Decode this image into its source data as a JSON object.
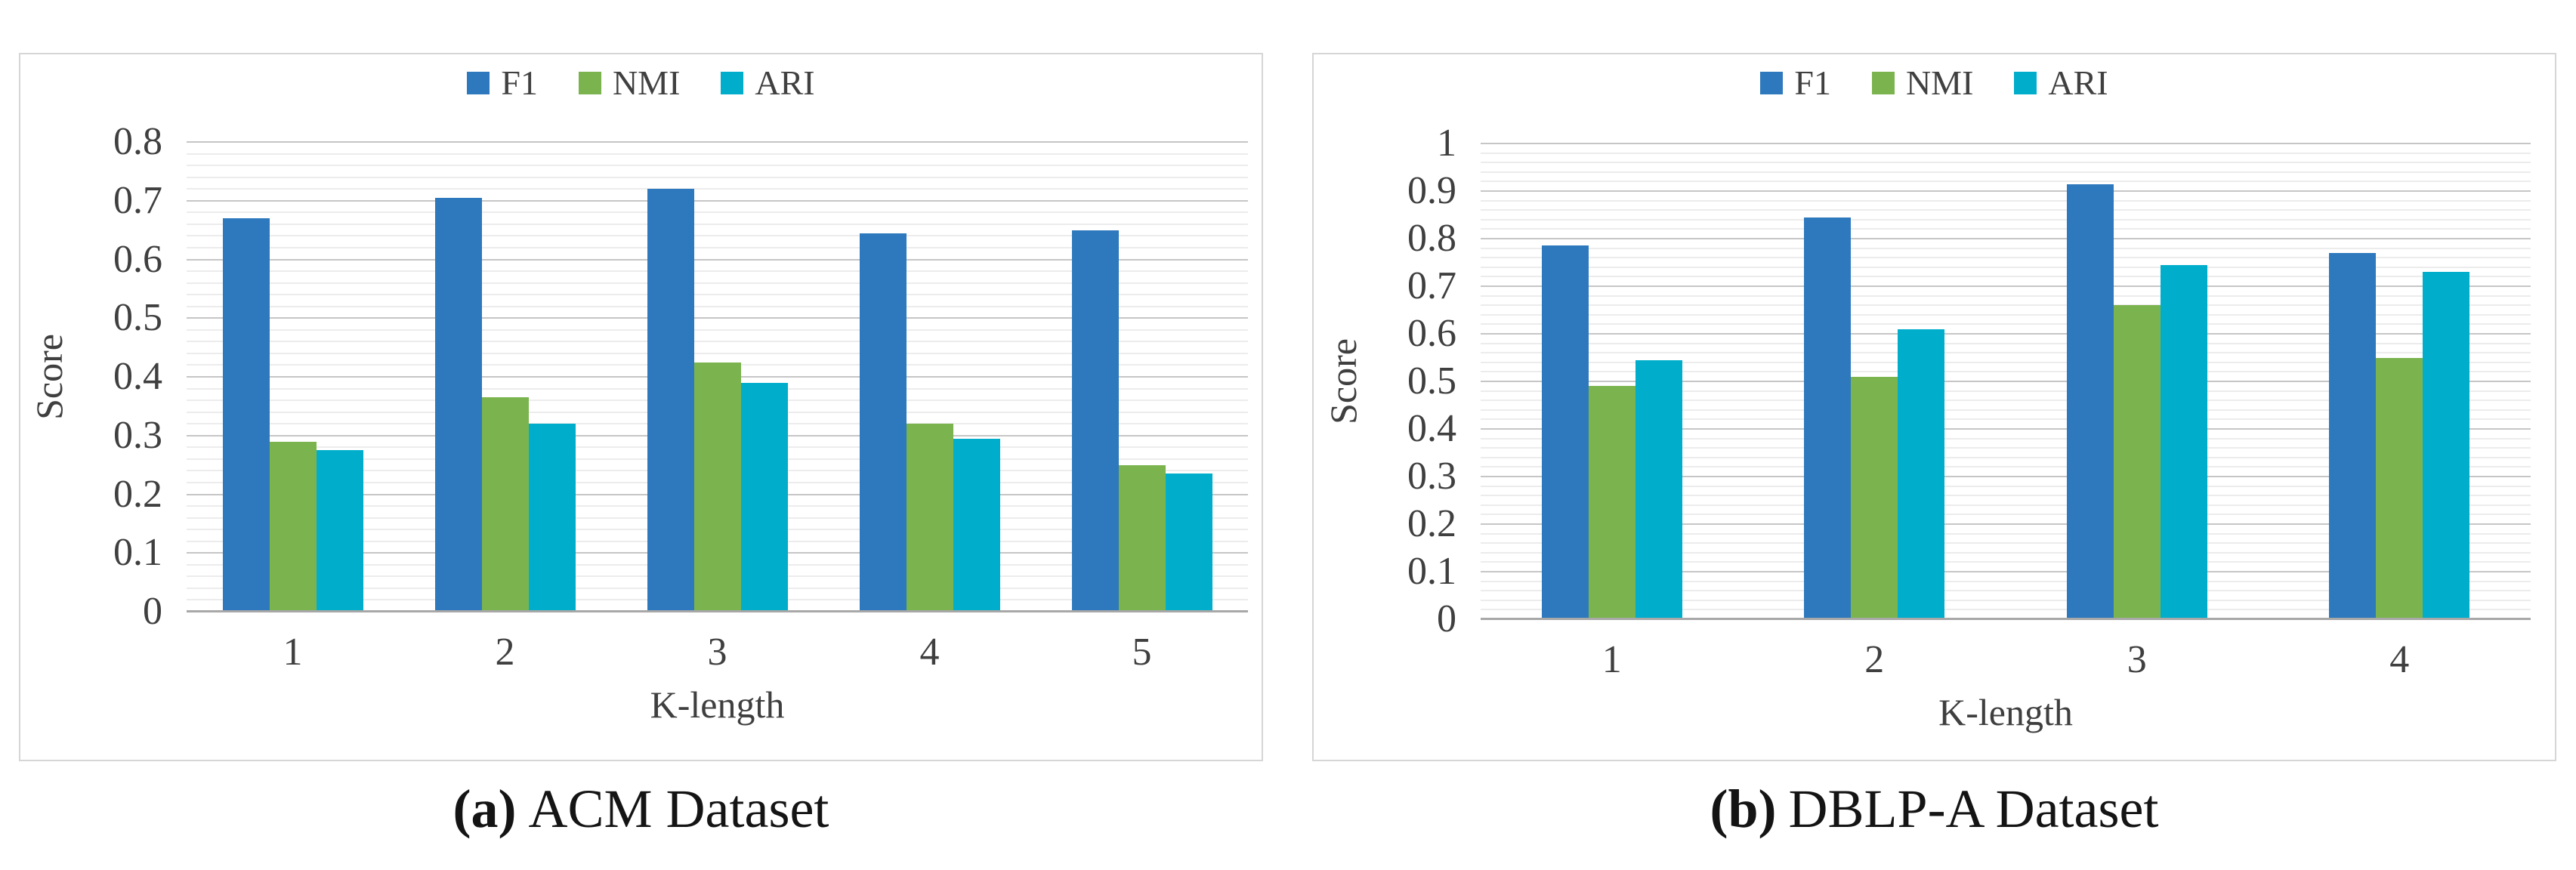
{
  "figure": {
    "ylabel": "Score",
    "xlabel": "K-length",
    "legend_labels": [
      "F1",
      "NMI",
      "ARI"
    ],
    "colors": {
      "f1_blue": "#2E79BD",
      "nmi_green": "#7BB44E",
      "ari_cyan": "#00AECB",
      "grid_minor": "#ECECEC",
      "grid_major": "#C6C6C6",
      "axis_text": "#3F3F3F"
    }
  },
  "chart_data": [
    {
      "type": "bar",
      "title": "(a) ACM Dataset",
      "caption_marker": "(a)",
      "caption": "ACM Dataset",
      "xlabel": "K-length",
      "ylabel": "Score",
      "ylim": [
        0,
        0.8
      ],
      "yticks": [
        "0",
        "0.1",
        "0.2",
        "0.3",
        "0.4",
        "0.5",
        "0.6",
        "0.7",
        "0.8"
      ],
      "grid_minor_step": 0.02,
      "grid_major_step": 0.1,
      "grid": "on",
      "legend_position": "top",
      "categories": [
        "1",
        "2",
        "3",
        "4",
        "5"
      ],
      "series": [
        {
          "name": "F1",
          "color": "#2E79BD",
          "values": [
            0.67,
            0.705,
            0.72,
            0.645,
            0.65
          ]
        },
        {
          "name": "NMI",
          "color": "#7BB44E",
          "values": [
            0.29,
            0.365,
            0.425,
            0.32,
            0.25
          ]
        },
        {
          "name": "ARI",
          "color": "#00AECB",
          "values": [
            0.275,
            0.32,
            0.39,
            0.295,
            0.235
          ]
        }
      ]
    },
    {
      "type": "bar",
      "title": "(b) DBLP-A Dataset",
      "caption_marker": "(b)",
      "caption": "DBLP-A Dataset",
      "xlabel": "K-length",
      "ylabel": "Score",
      "ylim": [
        0,
        1.0
      ],
      "yticks": [
        "0",
        "0.1",
        "0.2",
        "0.3",
        "0.4",
        "0.5",
        "0.6",
        "0.7",
        "0.8",
        "0.9",
        "1"
      ],
      "grid_minor_step": 0.02,
      "grid_major_step": 0.1,
      "grid": "on",
      "legend_position": "top",
      "categories": [
        "1",
        "2",
        "3",
        "4"
      ],
      "series": [
        {
          "name": "F1",
          "color": "#2E79BD",
          "values": [
            0.785,
            0.845,
            0.915,
            0.77
          ]
        },
        {
          "name": "NMI",
          "color": "#7BB44E",
          "values": [
            0.49,
            0.51,
            0.66,
            0.55
          ]
        },
        {
          "name": "ARI",
          "color": "#00AECB",
          "values": [
            0.545,
            0.61,
            0.745,
            0.73
          ]
        }
      ]
    }
  ]
}
